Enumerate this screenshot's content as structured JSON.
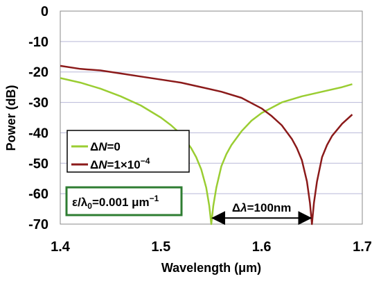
{
  "chart_data": {
    "type": "line",
    "title": "",
    "xlabel": "Wavelength (μm)",
    "ylabel": "Power (dB)",
    "xlim": [
      1.4,
      1.7
    ],
    "ylim": [
      -70,
      0
    ],
    "x_ticks": [
      "1.4",
      "1.5",
      "1.6",
      "1.7"
    ],
    "y_ticks": [
      "0",
      "-10",
      "-20",
      "-30",
      "-40",
      "-50",
      "-60",
      "-70"
    ],
    "grid": "horizontal",
    "legend_position": "lower-left",
    "series": [
      {
        "name_prefix": "Δ",
        "name_italic": "N",
        "name_suffix": "=0",
        "color": "#9acd32",
        "x": [
          1.4,
          1.42,
          1.44,
          1.46,
          1.48,
          1.5,
          1.51,
          1.52,
          1.53,
          1.535,
          1.54,
          1.545,
          1.548,
          1.55,
          1.552,
          1.555,
          1.56,
          1.565,
          1.57,
          1.58,
          1.59,
          1.6,
          1.62,
          1.64,
          1.66,
          1.68,
          1.69
        ],
        "y": [
          -22,
          -23.5,
          -25.5,
          -28,
          -31,
          -35,
          -37.5,
          -40.5,
          -45,
          -48,
          -52,
          -58,
          -64,
          -70,
          -64,
          -58,
          -51,
          -47,
          -44,
          -39.5,
          -36,
          -33.5,
          -30,
          -28,
          -26.5,
          -25,
          -24
        ]
      },
      {
        "name_prefix": "Δ",
        "name_italic": "N",
        "name_suffix": "=1×10",
        "name_sup": "−4",
        "color": "#8b1a1a",
        "x": [
          1.4,
          1.42,
          1.44,
          1.46,
          1.48,
          1.5,
          1.52,
          1.54,
          1.56,
          1.58,
          1.6,
          1.61,
          1.62,
          1.63,
          1.635,
          1.64,
          1.645,
          1.648,
          1.65,
          1.652,
          1.655,
          1.66,
          1.665,
          1.67,
          1.68,
          1.69
        ],
        "y": [
          -18,
          -19,
          -19.5,
          -20.5,
          -21.5,
          -22.5,
          -23.5,
          -25,
          -26.5,
          -28.5,
          -32,
          -34.5,
          -37.5,
          -42,
          -45,
          -49,
          -56,
          -63,
          -70,
          -63,
          -56,
          -48,
          -44,
          -41,
          -37,
          -34
        ]
      }
    ],
    "annotations": {
      "param_prefix": "ε/λ",
      "param_sub": "0",
      "param_mid": "=0.001 μm",
      "param_sup": "−1",
      "param_box_color": "#2e7d32",
      "delta_prefix": "Δ",
      "delta_italic": "λ",
      "delta_suffix": "=100nm",
      "delta_from": 1.55,
      "delta_to": 1.65,
      "delta_y": -68
    }
  }
}
